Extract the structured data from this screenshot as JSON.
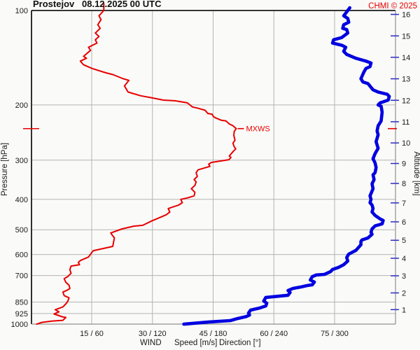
{
  "header": {
    "station": "Prostejov",
    "datetime": "08.12.2025 00 UTC",
    "copyright": "CHMI © 2025"
  },
  "legend": {
    "wind": "WIND",
    "speed": "Speed [m/s]",
    "direction": "Direction [°]"
  },
  "axes": {
    "pressure": {
      "label": "Pressure [hPa]",
      "scale": "log",
      "ticks": [
        {
          "hpa": 100,
          "grid": false
        },
        {
          "hpa": 200,
          "grid": true
        },
        {
          "hpa": 300,
          "grid": true
        },
        {
          "hpa": 400,
          "grid": true
        },
        {
          "hpa": 500,
          "grid": true
        },
        {
          "hpa": 600,
          "grid": true
        },
        {
          "hpa": 700,
          "grid": true
        },
        {
          "hpa": 850,
          "grid": true
        },
        {
          "hpa": 925,
          "grid": true
        },
        {
          "hpa": 1000,
          "grid": false
        }
      ]
    },
    "altitude": {
      "label": "Altitude [km]",
      "ticks": [
        {
          "km": 1,
          "hpa": 898.8
        },
        {
          "km": 2,
          "hpa": 795.0
        },
        {
          "km": 3,
          "hpa": 701.1
        },
        {
          "km": 4,
          "hpa": 616.4
        },
        {
          "km": 5,
          "hpa": 540.2
        },
        {
          "km": 6,
          "hpa": 471.8
        },
        {
          "km": 7,
          "hpa": 410.6
        },
        {
          "km": 8,
          "hpa": 356.0
        },
        {
          "km": 9,
          "hpa": 307.4
        },
        {
          "km": 10,
          "hpa": 264.4
        },
        {
          "km": 11,
          "hpa": 226.3
        },
        {
          "km": 12,
          "hpa": 193.3
        },
        {
          "km": 13,
          "hpa": 165.1
        },
        {
          "km": 14,
          "hpa": 141.0
        },
        {
          "km": 15,
          "hpa": 120.5
        },
        {
          "km": 16,
          "hpa": 102.9
        }
      ]
    },
    "x": {
      "ticks": [
        {
          "speed": 15,
          "direction": 60,
          "label": "15 / 60"
        },
        {
          "speed": 30,
          "direction": 120,
          "label": "30 / 120"
        },
        {
          "speed": 45,
          "direction": 180,
          "label": "45 / 180"
        },
        {
          "speed": 60,
          "direction": 240,
          "label": "60 / 240"
        },
        {
          "speed": 75,
          "direction": 300,
          "label": "75 / 300"
        }
      ]
    }
  },
  "colors": {
    "speed": "#e60000",
    "direction_curve": "#0000e0",
    "direction_text": "#2d2dc4",
    "grid": "#b4b4b4",
    "frame_dark": "#1a1a1a",
    "frame_light": "#909090"
  },
  "chart_data": {
    "type": "line",
    "title": "Prostejov 08.12.2025 00 UTC — vertical wind profile",
    "xlabel": "WIND Speed [m/s] / Direction [°]",
    "ylabel": "Pressure [hPa] / Altitude [km]",
    "x_axis": {
      "speed_range_m_s": [
        0,
        90
      ],
      "direction_range_deg": [
        0,
        360
      ]
    },
    "y_axis": {
      "pressure_range_hpa": [
        100,
        1000
      ],
      "scale": "log"
    },
    "annotations": {
      "mxws": {
        "label": "MXWS",
        "speed": 50.7,
        "pressure": 238
      }
    },
    "series": [
      {
        "name": "Speed",
        "unit": "m/s",
        "color": "#e60000",
        "width": 2,
        "points": [
          [
            18.0,
            95
          ],
          [
            18.0,
            100
          ],
          [
            16.8,
            104
          ],
          [
            17.3,
            107
          ],
          [
            16.5,
            111
          ],
          [
            17.1,
            114
          ],
          [
            15.9,
            118
          ],
          [
            16.8,
            121
          ],
          [
            15.9,
            124
          ],
          [
            16.3,
            127
          ],
          [
            14.2,
            131
          ],
          [
            14.7,
            134
          ],
          [
            13.0,
            140
          ],
          [
            13.7,
            142
          ],
          [
            12.2,
            145
          ],
          [
            13.0,
            149
          ],
          [
            15.1,
            153
          ],
          [
            18.5,
            158
          ],
          [
            20.2,
            160
          ],
          [
            22.8,
            165
          ],
          [
            24.2,
            167
          ],
          [
            23.1,
            174
          ],
          [
            24.0,
            182
          ],
          [
            27.1,
            187
          ],
          [
            30.0,
            190
          ],
          [
            32.7,
            193
          ],
          [
            35.7,
            194
          ],
          [
            38.6,
            197
          ],
          [
            39.9,
            203
          ],
          [
            41.3,
            205
          ],
          [
            43.0,
            208
          ],
          [
            43.7,
            213
          ],
          [
            44.7,
            214
          ],
          [
            45.1,
            218
          ],
          [
            45.6,
            220
          ],
          [
            47.1,
            224
          ],
          [
            48.2,
            225
          ],
          [
            49.0,
            230
          ],
          [
            49.9,
            233
          ],
          [
            50.7,
            238
          ],
          [
            50.2,
            243
          ],
          [
            50.1,
            250
          ],
          [
            50.4,
            259
          ],
          [
            49.9,
            265
          ],
          [
            50.2,
            272
          ],
          [
            50.6,
            276
          ],
          [
            49.9,
            282
          ],
          [
            49.0,
            291
          ],
          [
            49.4,
            294
          ],
          [
            48.9,
            299
          ],
          [
            44.6,
            305
          ],
          [
            43.9,
            309
          ],
          [
            44.2,
            314
          ],
          [
            41.3,
            322
          ],
          [
            40.8,
            329
          ],
          [
            41.1,
            338
          ],
          [
            40.3,
            346
          ],
          [
            40.8,
            352
          ],
          [
            40.5,
            361
          ],
          [
            39.6,
            370
          ],
          [
            40.5,
            380
          ],
          [
            40.3,
            390
          ],
          [
            38.6,
            396
          ],
          [
            37.0,
            400
          ],
          [
            37.4,
            410
          ],
          [
            36.5,
            417
          ],
          [
            33.9,
            428
          ],
          [
            34.3,
            439
          ],
          [
            33.4,
            448
          ],
          [
            32.2,
            455
          ],
          [
            29.8,
            469
          ],
          [
            27.6,
            484
          ],
          [
            25.4,
            487
          ],
          [
            22.5,
            497
          ],
          [
            19.7,
            512
          ],
          [
            20.2,
            523
          ],
          [
            20.6,
            531
          ],
          [
            20.2,
            565
          ],
          [
            15.4,
            583
          ],
          [
            15.1,
            589
          ],
          [
            14.2,
            611
          ],
          [
            12.2,
            627
          ],
          [
            11.7,
            636
          ],
          [
            12.0,
            646
          ],
          [
            9.9,
            653
          ],
          [
            9.6,
            670
          ],
          [
            9.9,
            688
          ],
          [
            9.1,
            705
          ],
          [
            8.2,
            716
          ],
          [
            8.6,
            735
          ],
          [
            9.4,
            751
          ],
          [
            9.6,
            770
          ],
          [
            8.7,
            782
          ],
          [
            7.9,
            790
          ],
          [
            8.2,
            811
          ],
          [
            9.4,
            824
          ],
          [
            9.1,
            845
          ],
          [
            8.7,
            859
          ],
          [
            7.9,
            881
          ],
          [
            6.0,
            899
          ],
          [
            6.9,
            913
          ],
          [
            5.7,
            928
          ],
          [
            7.7,
            947
          ],
          [
            8.6,
            952
          ],
          [
            7.9,
            972
          ],
          [
            5.3,
            977
          ],
          [
            2.7,
            987
          ],
          [
            1.4,
            1000
          ]
        ]
      },
      {
        "name": "Direction",
        "unit": "deg",
        "color": "#0000e0",
        "width": 4.6,
        "points": [
          [
            315,
            98
          ],
          [
            313,
            100
          ],
          [
            309,
            104
          ],
          [
            313,
            106
          ],
          [
            314,
            109
          ],
          [
            309,
            111
          ],
          [
            308,
            114
          ],
          [
            312,
            115
          ],
          [
            313,
            118
          ],
          [
            307,
            122
          ],
          [
            299,
            124
          ],
          [
            298,
            127
          ],
          [
            307,
            129
          ],
          [
            311,
            131
          ],
          [
            309,
            135
          ],
          [
            312,
            138
          ],
          [
            321,
            142
          ],
          [
            331,
            145
          ],
          [
            336,
            147
          ],
          [
            335,
            151
          ],
          [
            331,
            153
          ],
          [
            329,
            157
          ],
          [
            326,
            165
          ],
          [
            328,
            169
          ],
          [
            333,
            171
          ],
          [
            338,
            179
          ],
          [
            343,
            182
          ],
          [
            352,
            185
          ],
          [
            354,
            188
          ],
          [
            353,
            193
          ],
          [
            345,
            197
          ],
          [
            343,
            200
          ],
          [
            346,
            202
          ],
          [
            347,
            211
          ],
          [
            346,
            225
          ],
          [
            343,
            233
          ],
          [
            342,
            242
          ],
          [
            343,
            249
          ],
          [
            341,
            262
          ],
          [
            343,
            275
          ],
          [
            340,
            286
          ],
          [
            338,
            297
          ],
          [
            340,
            306
          ],
          [
            341,
            317
          ],
          [
            340,
            329
          ],
          [
            338,
            334
          ],
          [
            339,
            346
          ],
          [
            337,
            357
          ],
          [
            338,
            370
          ],
          [
            335,
            390
          ],
          [
            336,
            400
          ],
          [
            335,
            410
          ],
          [
            337,
            417
          ],
          [
            338,
            428
          ],
          [
            337,
            439
          ],
          [
            340,
            450
          ],
          [
            345,
            462
          ],
          [
            348,
            467
          ],
          [
            347,
            479
          ],
          [
            340,
            486
          ],
          [
            337,
            497
          ],
          [
            336,
            509
          ],
          [
            337,
            517
          ],
          [
            333,
            531
          ],
          [
            327,
            539
          ],
          [
            326,
            545
          ],
          [
            326,
            558
          ],
          [
            321,
            582
          ],
          [
            314,
            598
          ],
          [
            312,
            613
          ],
          [
            313,
            629
          ],
          [
            309,
            646
          ],
          [
            304,
            659
          ],
          [
            298,
            669
          ],
          [
            296,
            680
          ],
          [
            290,
            694
          ],
          [
            282,
            697
          ],
          [
            278,
            705
          ],
          [
            276,
            723
          ],
          [
            280,
            734
          ],
          [
            278,
            749
          ],
          [
            273,
            753
          ],
          [
            267,
            761
          ],
          [
            259,
            769
          ],
          [
            254,
            781
          ],
          [
            256,
            793
          ],
          [
            254,
            809
          ],
          [
            232,
            822
          ],
          [
            230,
            844
          ],
          [
            233,
            857
          ],
          [
            232,
            875
          ],
          [
            226,
            888
          ],
          [
            217,
            902
          ],
          [
            215,
            921
          ],
          [
            216,
            935
          ],
          [
            213,
            945
          ],
          [
            204,
            960
          ],
          [
            197,
            974
          ],
          [
            175,
            985
          ],
          [
            151,
            1000
          ]
        ]
      }
    ]
  }
}
